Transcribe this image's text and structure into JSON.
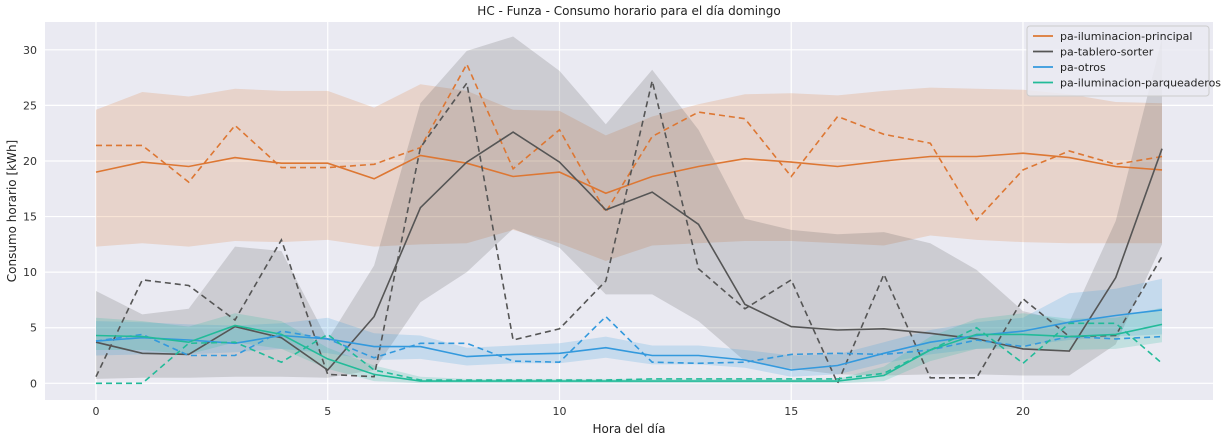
{
  "chart_data": {
    "type": "line",
    "title": "HC - Funza - Consumo horario para el día domingo",
    "xlabel": "Hora del día",
    "ylabel": "Consumo horario [kWh]",
    "xlim": [
      -1.1,
      24.1
    ],
    "ylim": [
      -1.5,
      32.5
    ],
    "x_ticks": [
      0,
      5,
      10,
      15,
      20
    ],
    "y_ticks": [
      0,
      5,
      10,
      15,
      20,
      25,
      30
    ],
    "grid": true,
    "legend_position": "top-right",
    "x": [
      0,
      1,
      2,
      3,
      4,
      5,
      6,
      7,
      8,
      9,
      10,
      11,
      12,
      13,
      14,
      15,
      16,
      17,
      18,
      19,
      20,
      21,
      22,
      23
    ],
    "series": [
      {
        "name": "pa-iluminacion-principal",
        "color": "#dd7733",
        "mean": [
          19.0,
          19.9,
          19.5,
          20.3,
          19.8,
          19.8,
          18.4,
          20.5,
          19.8,
          18.6,
          19.0,
          17.1,
          18.6,
          19.5,
          20.2,
          19.9,
          19.5,
          20.0,
          20.4,
          20.4,
          20.7,
          20.3,
          19.5,
          19.2
        ],
        "lower": [
          12.3,
          12.6,
          12.3,
          12.8,
          12.7,
          12.9,
          12.3,
          12.5,
          12.6,
          13.8,
          12.6,
          11.0,
          12.4,
          12.6,
          12.8,
          12.8,
          12.6,
          12.4,
          13.3,
          12.9,
          12.7,
          12.6,
          12.6,
          12.6
        ],
        "upper": [
          24.6,
          26.2,
          25.8,
          26.5,
          26.3,
          26.3,
          24.8,
          26.9,
          26.3,
          24.6,
          24.5,
          22.3,
          24.0,
          25.1,
          26.0,
          26.1,
          25.9,
          26.3,
          26.6,
          26.5,
          26.4,
          26.0,
          25.3,
          25.2
        ],
        "day": [
          21.4,
          21.4,
          18.1,
          23.2,
          19.4,
          19.4,
          19.7,
          21.2,
          28.7,
          19.3,
          22.8,
          15.4,
          22.2,
          24.4,
          23.8,
          18.6,
          24.0,
          22.4,
          21.6,
          14.7,
          19.2,
          20.9,
          19.7,
          20.4
        ]
      },
      {
        "name": "pa-tablero-sorter",
        "color": "#555555",
        "mean": [
          3.7,
          2.7,
          2.6,
          5.1,
          4.1,
          1.2,
          6.0,
          15.8,
          19.9,
          22.6,
          19.9,
          15.6,
          17.2,
          14.3,
          7.1,
          5.1,
          4.8,
          4.9,
          4.5,
          4.0,
          3.1,
          2.9,
          9.5,
          21.1
        ],
        "lower": [
          0.4,
          0.5,
          0.5,
          0.6,
          0.6,
          0.5,
          1.2,
          7.3,
          10.0,
          13.9,
          12.2,
          8.0,
          8.0,
          5.6,
          2.0,
          1.3,
          0.8,
          0.7,
          0.8,
          0.8,
          0.7,
          0.7,
          3.5,
          12.5
        ],
        "upper": [
          8.3,
          6.2,
          6.7,
          12.3,
          11.9,
          3.9,
          10.6,
          25.2,
          29.9,
          31.2,
          28.1,
          23.3,
          28.2,
          22.8,
          14.8,
          13.8,
          13.4,
          13.6,
          12.6,
          10.2,
          6.5,
          5.5,
          14.6,
          31.0
        ],
        "day": [
          0.6,
          9.3,
          8.8,
          5.7,
          12.9,
          0.8,
          0.6,
          21.2,
          27.0,
          3.9,
          4.9,
          9.2,
          27.2,
          10.3,
          6.7,
          9.3,
          0.0,
          9.8,
          0.5,
          0.5,
          7.6,
          4.2,
          4.3,
          11.4
        ]
      },
      {
        "name": "pa-otros",
        "color": "#3399dd",
        "mean": [
          3.8,
          4.1,
          3.9,
          3.6,
          4.3,
          4.0,
          3.3,
          3.3,
          2.4,
          2.6,
          2.7,
          3.2,
          2.5,
          2.5,
          2.1,
          1.2,
          1.6,
          2.7,
          3.7,
          4.3,
          4.7,
          5.5,
          6.1,
          6.6
        ],
        "lower": [
          2.5,
          2.6,
          2.6,
          2.8,
          3.1,
          2.7,
          2.1,
          2.2,
          1.6,
          1.8,
          1.8,
          2.3,
          1.7,
          1.7,
          1.4,
          0.6,
          0.8,
          1.8,
          2.6,
          3.1,
          3.4,
          3.9,
          4.2,
          4.4
        ],
        "upper": [
          5.6,
          5.5,
          5.3,
          5.2,
          5.4,
          5.9,
          4.5,
          4.3,
          3.2,
          3.4,
          3.6,
          4.2,
          3.4,
          3.4,
          3.0,
          2.5,
          2.6,
          3.7,
          4.8,
          5.5,
          5.9,
          8.1,
          8.5,
          9.4
        ],
        "day": [
          3.8,
          4.4,
          2.5,
          2.5,
          4.7,
          4.0,
          2.3,
          3.6,
          3.6,
          2.0,
          1.9,
          6.0,
          1.9,
          1.8,
          1.9,
          2.6,
          2.7,
          2.6,
          3.0,
          3.9,
          3.3,
          4.2,
          4.0,
          4.2
        ]
      },
      {
        "name": "pa-iluminacion-parqueaderos",
        "color": "#22bb99",
        "mean": [
          4.3,
          4.2,
          3.7,
          5.2,
          4.4,
          2.2,
          0.8,
          0.2,
          0.2,
          0.2,
          0.2,
          0.2,
          0.2,
          0.2,
          0.2,
          0.2,
          0.2,
          0.7,
          3.0,
          4.4,
          4.4,
          4.2,
          4.4,
          5.3
        ],
        "lower": [
          3.0,
          3.0,
          2.6,
          3.7,
          3.1,
          1.3,
          0.2,
          0.0,
          0.0,
          0.0,
          0.0,
          0.0,
          0.0,
          0.0,
          0.0,
          0.0,
          0.0,
          0.2,
          2.0,
          3.1,
          3.1,
          3.0,
          3.1,
          3.7
        ],
        "upper": [
          5.9,
          5.6,
          5.1,
          6.3,
          5.6,
          3.2,
          1.6,
          0.6,
          0.4,
          0.4,
          0.4,
          0.4,
          0.4,
          0.4,
          0.4,
          0.4,
          0.4,
          1.5,
          4.2,
          5.8,
          6.3,
          5.8,
          5.9,
          6.8
        ],
        "day": [
          0.0,
          0.0,
          3.6,
          3.7,
          1.9,
          4.4,
          1.2,
          0.3,
          0.3,
          0.3,
          0.3,
          0.3,
          0.4,
          0.4,
          0.4,
          0.4,
          0.4,
          0.9,
          3.0,
          5.0,
          1.8,
          5.4,
          5.4,
          1.8
        ]
      }
    ]
  }
}
